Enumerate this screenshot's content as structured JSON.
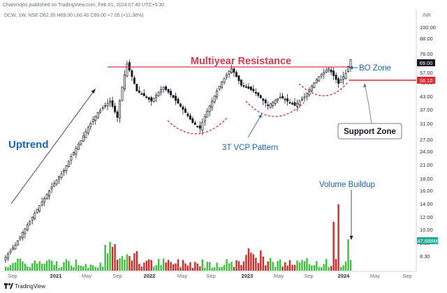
{
  "header": {
    "publisher": "Chartmojos published on TradingView.com, Feb 01, 2024 07:40 UTC+5:30",
    "symbol_line": "DCW, 1W, NSE  O62.35  H69.30  L60.40  C69.00  +7.05 (+11.38%)"
  },
  "footer": {
    "brand": "TradingView"
  },
  "axis": {
    "currency": "INR",
    "yticks": [
      "100.00",
      "88.00",
      "76.00",
      "66.00",
      "57.00",
      "49.00",
      "43.00",
      "37.00",
      "31.00",
      "27.00",
      "24.00",
      "21.00",
      "18.00",
      "16.00",
      "14.00",
      "12.00",
      "10.00",
      "9.30",
      "8.30"
    ],
    "xticks": [
      {
        "label": "Sep",
        "bold": false
      },
      {
        "label": "2021",
        "bold": true
      },
      {
        "label": "May",
        "bold": false
      },
      {
        "label": "Sep",
        "bold": false
      },
      {
        "label": "2022",
        "bold": true
      },
      {
        "label": "May",
        "bold": false
      },
      {
        "label": "Sep",
        "bold": false
      },
      {
        "label": "2023",
        "bold": true
      },
      {
        "label": "May",
        "bold": false
      },
      {
        "label": "Sep",
        "bold": false
      },
      {
        "label": "2024",
        "bold": true
      },
      {
        "label": "May",
        "bold": false
      },
      {
        "label": "Sep",
        "bold": false
      }
    ]
  },
  "badges": {
    "price": "69.00",
    "support": "58.10",
    "volume": "47.688M",
    "price_color": "#131722",
    "support_color": "#e0272e",
    "volume_color": "#22ab94"
  },
  "annotations": {
    "resistance": "Multiyear Resistance",
    "bo_zone": "BO Zone",
    "support_zone": "Support Zone",
    "vcp": "3T VCP Pattern",
    "uptrend": "Uptrend",
    "volume": "Volume Buildup"
  },
  "colors": {
    "up": "#26a69a",
    "down": "#ef5350",
    "candle": "#131722",
    "vol_up": "#3cc23c",
    "vol_down": "#d42a2a",
    "resistance": "#d93a4f",
    "blue_text": "#1565c0",
    "support_line": "#e0272e"
  },
  "chart_data": {
    "type": "candlestick",
    "interval": "1W",
    "title": "",
    "xlabel": "",
    "ylabel": "",
    "yscale": "log",
    "ylim": [
      8.3,
      100
    ],
    "resistance_level": 69,
    "support_level": 58.1,
    "last_close": 69.0,
    "last_volume": "47.688M",
    "series": [
      {
        "date": "2020-09",
        "close": 9.3
      },
      {
        "date": "2021-01",
        "close": 13.5
      },
      {
        "date": "2021-05",
        "close": 24.0
      },
      {
        "date": "2021-09",
        "close": 41.0
      },
      {
        "date": "2021-10",
        "close": 64.0
      },
      {
        "date": "2022-01",
        "close": 45.0
      },
      {
        "date": "2022-05",
        "close": 46.0
      },
      {
        "date": "2022-07",
        "close": 35.0
      },
      {
        "date": "2022-09",
        "close": 52.0
      },
      {
        "date": "2022-10",
        "close": 62.0
      },
      {
        "date": "2023-01",
        "close": 49.0
      },
      {
        "date": "2023-05",
        "close": 46.0
      },
      {
        "date": "2023-09",
        "close": 57.0
      },
      {
        "date": "2023-12",
        "close": 58.0
      },
      {
        "date": "2024-01",
        "close": 69.0
      }
    ]
  }
}
